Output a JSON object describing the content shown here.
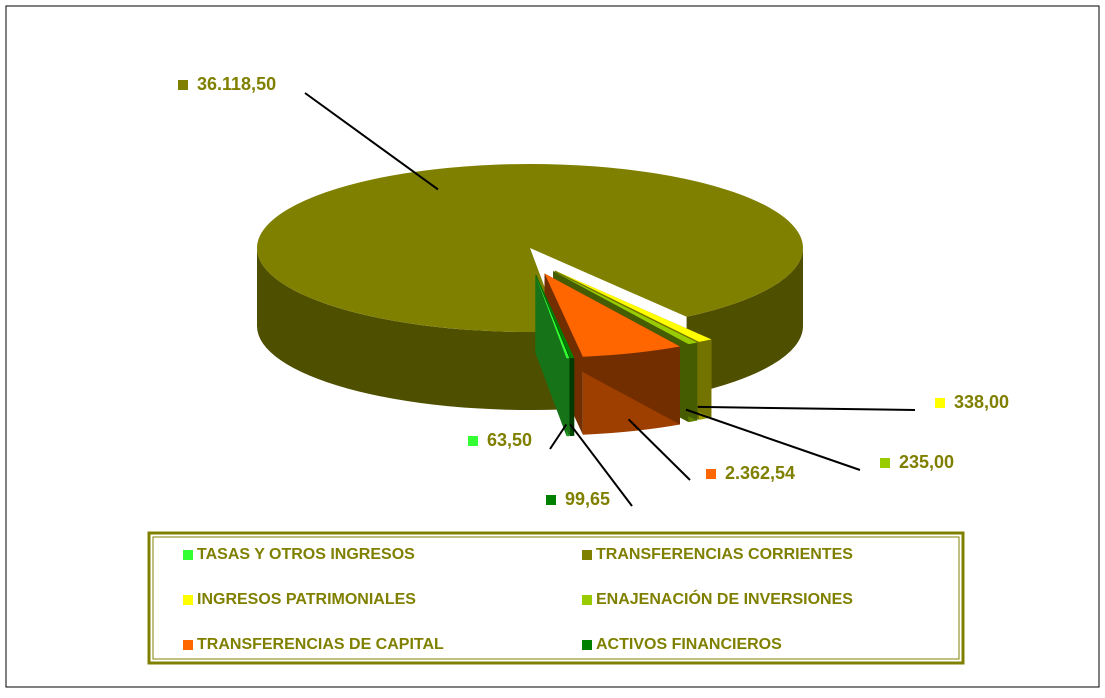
{
  "chart_data": {
    "type": "pie",
    "labels": [
      "TASAS Y OTROS INGRESOS",
      "TRANSFERENCIAS CORRIENTES",
      "INGRESOS PATRIMONIALES",
      "ENAJENACIÓN DE INVERSIONES",
      "TRANSFERENCIAS DE CAPITAL",
      "ACTIVOS FINANCIEROS"
    ],
    "values": [
      63.5,
      36118.5,
      338,
      235,
      2362.54,
      99.65
    ],
    "value_labels": [
      "63,50",
      "36.118,50",
      "338,00",
      "235,00",
      "2.362,54",
      "99,65"
    ],
    "colors": [
      "#33ff33",
      "#808000",
      "#ffff00",
      "#99cc00",
      "#ff6600",
      "#008000"
    ]
  }
}
